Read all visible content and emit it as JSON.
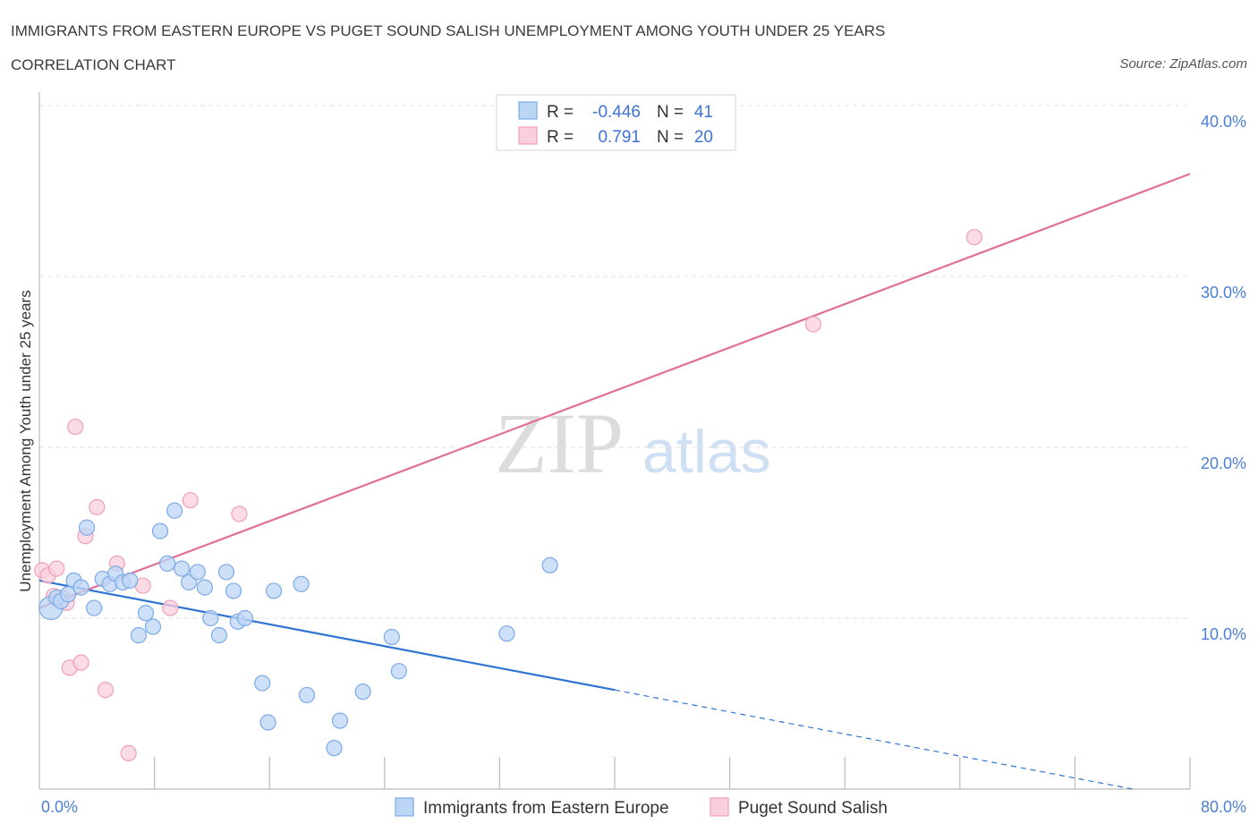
{
  "chart_data": {
    "type": "scatter",
    "title": "IMMIGRANTS FROM EASTERN EUROPE VS PUGET SOUND SALISH UNEMPLOYMENT AMONG YOUTH UNDER 25 YEARS",
    "subtitle": "CORRELATION CHART",
    "source": "Source: ZipAtlas.com",
    "ylabel": "Unemployment Among Youth under 25 years",
    "xlabel": "",
    "xlim": [
      0,
      80
    ],
    "ylim": [
      0,
      40
    ],
    "x_tick_labels": [
      {
        "value": 0,
        "label": "0.0%"
      },
      {
        "value": 80,
        "label": "80.0%"
      }
    ],
    "y_tick_labels": [
      {
        "value": 10,
        "label": "10.0%"
      },
      {
        "value": 20,
        "label": "20.0%"
      },
      {
        "value": 30,
        "label": "30.0%"
      },
      {
        "value": 40,
        "label": "40.0%"
      }
    ],
    "watermark": {
      "zip": "ZIP",
      "atlas": "atlas"
    },
    "legend_top": [
      {
        "series": "Immigrants from Eastern Europe",
        "r_label": "R =",
        "r_value": "-0.446",
        "n_label": "N =",
        "n_value": "41"
      },
      {
        "series": "Puget Sound Salish",
        "r_label": "R =",
        "r_value": "0.791",
        "n_label": "N =",
        "n_value": "20"
      }
    ],
    "series": [
      {
        "name": "Immigrants from Eastern Europe",
        "color": "#7aaae8",
        "fill": "#bdd5f5",
        "line_color": "#2e74d0",
        "trend": {
          "x0": 0,
          "y0": 12.2,
          "x1": 40,
          "y1": 5.8,
          "dash_to_x": 76,
          "dash_to_y": 0
        },
        "points": [
          {
            "x": 0.8,
            "y": 10.6,
            "big": true
          },
          {
            "x": 1.2,
            "y": 11.2
          },
          {
            "x": 1.5,
            "y": 11.0
          },
          {
            "x": 2.0,
            "y": 11.4
          },
          {
            "x": 2.4,
            "y": 12.2
          },
          {
            "x": 2.9,
            "y": 11.8
          },
          {
            "x": 3.3,
            "y": 15.3
          },
          {
            "x": 3.8,
            "y": 10.6
          },
          {
            "x": 4.4,
            "y": 12.3
          },
          {
            "x": 4.9,
            "y": 12.0
          },
          {
            "x": 5.3,
            "y": 12.6
          },
          {
            "x": 5.8,
            "y": 12.1
          },
          {
            "x": 6.3,
            "y": 12.2
          },
          {
            "x": 6.9,
            "y": 9.0
          },
          {
            "x": 7.4,
            "y": 10.3
          },
          {
            "x": 7.9,
            "y": 9.5
          },
          {
            "x": 8.4,
            "y": 15.1
          },
          {
            "x": 8.9,
            "y": 13.2
          },
          {
            "x": 9.4,
            "y": 16.3
          },
          {
            "x": 9.9,
            "y": 12.9
          },
          {
            "x": 10.4,
            "y": 12.1
          },
          {
            "x": 11.0,
            "y": 12.7
          },
          {
            "x": 11.5,
            "y": 11.8
          },
          {
            "x": 11.9,
            "y": 10.0
          },
          {
            "x": 12.5,
            "y": 9.0
          },
          {
            "x": 13.0,
            "y": 12.7
          },
          {
            "x": 13.5,
            "y": 11.6
          },
          {
            "x": 13.8,
            "y": 9.8
          },
          {
            "x": 14.3,
            "y": 10.0
          },
          {
            "x": 15.5,
            "y": 6.2
          },
          {
            "x": 15.9,
            "y": 3.9
          },
          {
            "x": 16.3,
            "y": 11.6
          },
          {
            "x": 18.2,
            "y": 12.0
          },
          {
            "x": 18.6,
            "y": 5.5
          },
          {
            "x": 20.5,
            "y": 2.4
          },
          {
            "x": 20.9,
            "y": 4.0
          },
          {
            "x": 22.5,
            "y": 5.7
          },
          {
            "x": 24.5,
            "y": 8.9
          },
          {
            "x": 25.0,
            "y": 6.9
          },
          {
            "x": 32.5,
            "y": 9.1
          },
          {
            "x": 35.5,
            "y": 13.1
          }
        ]
      },
      {
        "name": "Puget Sound Salish",
        "color": "#f0a0b8",
        "fill": "#f9cfdc",
        "line_color": "#e0709a",
        "trend": {
          "x0": 0,
          "y0": 10.6,
          "x1": 80,
          "y1": 36.0
        },
        "points": [
          {
            "x": 0.2,
            "y": 12.8
          },
          {
            "x": 0.6,
            "y": 12.5
          },
          {
            "x": 1.2,
            "y": 12.9
          },
          {
            "x": 1.6,
            "y": 11.2
          },
          {
            "x": 1.9,
            "y": 10.9
          },
          {
            "x": 2.1,
            "y": 7.1
          },
          {
            "x": 2.5,
            "y": 21.2
          },
          {
            "x": 2.9,
            "y": 7.4
          },
          {
            "x": 3.2,
            "y": 14.8
          },
          {
            "x": 4.0,
            "y": 16.5
          },
          {
            "x": 4.6,
            "y": 5.8
          },
          {
            "x": 5.4,
            "y": 13.2
          },
          {
            "x": 6.2,
            "y": 2.1
          },
          {
            "x": 7.2,
            "y": 11.9
          },
          {
            "x": 9.1,
            "y": 10.6
          },
          {
            "x": 10.5,
            "y": 16.9
          },
          {
            "x": 13.9,
            "y": 16.1
          },
          {
            "x": 53.8,
            "y": 27.2
          },
          {
            "x": 65.0,
            "y": 32.3
          },
          {
            "x": 1.0,
            "y": 11.3
          }
        ]
      }
    ],
    "legend_bottom": [
      "Immigrants from Eastern Europe",
      "Puget Sound Salish"
    ]
  }
}
